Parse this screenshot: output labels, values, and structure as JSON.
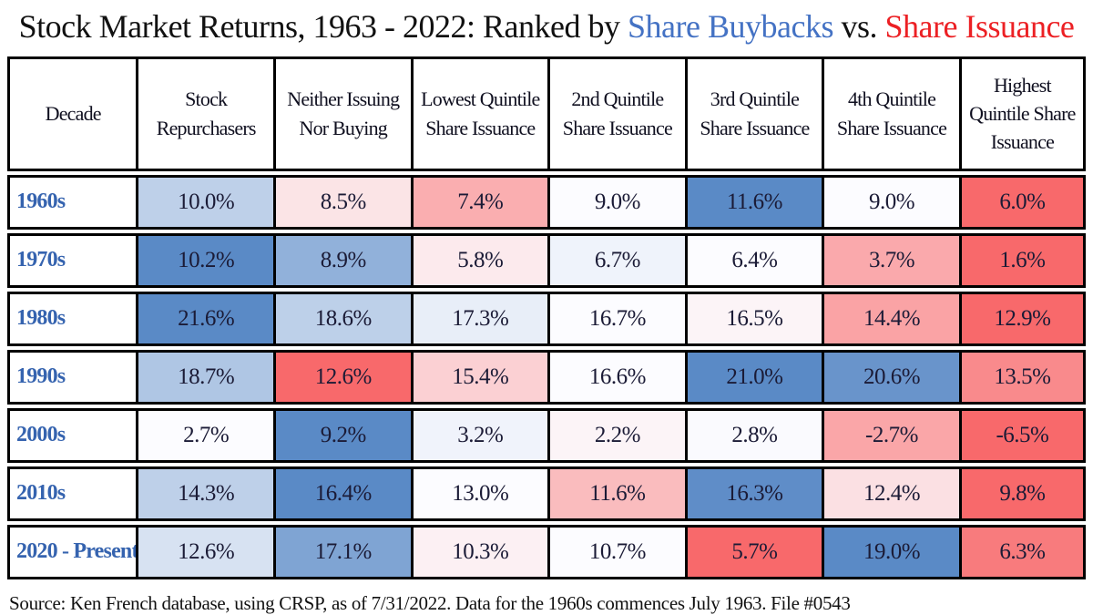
{
  "title": {
    "prefix": "Stock Market Returns, 1963 - 2022: Ranked by ",
    "buybacks": "Share Buybacks",
    "vs": " vs. ",
    "issuance": "Share Issuance",
    "buybacks_color": "#4472C4",
    "issuance_color": "#EC2024"
  },
  "chart_data": {
    "type": "heatmap",
    "title": "Stock Market Returns, 1963 - 2022: Ranked by Share Buybacks vs. Share Issuance",
    "corner_label": "Decade",
    "columns": [
      "Stock\nRepurchasers",
      "Neither Issuing\nNor Buying",
      "Lowest Quintile\nShare Issuance",
      "2nd Quintile\nShare Issuance",
      "3rd Quintile\nShare Issuance",
      "4th Quintile\nShare Issuance",
      "Highest\nQuintile Share\nIssuance"
    ],
    "rows": [
      "1960s",
      "1970s",
      "1980s",
      "1990s",
      "2000s",
      "2010s",
      "2020 - Present"
    ],
    "values_pct": [
      [
        10.0,
        8.5,
        7.4,
        9.0,
        11.6,
        9.0,
        6.0
      ],
      [
        10.2,
        8.9,
        5.8,
        6.7,
        6.4,
        3.7,
        1.6
      ],
      [
        21.6,
        18.6,
        17.3,
        16.7,
        16.5,
        14.4,
        12.9
      ],
      [
        18.7,
        12.6,
        15.4,
        16.6,
        21.0,
        20.6,
        13.5
      ],
      [
        2.7,
        9.2,
        3.2,
        2.2,
        2.8,
        -2.7,
        -6.5
      ],
      [
        14.3,
        16.4,
        13.0,
        11.6,
        16.3,
        12.4,
        9.8
      ],
      [
        12.6,
        17.1,
        10.3,
        10.7,
        5.7,
        19.0,
        6.3
      ]
    ],
    "value_format": "percent_1dp",
    "normalization": "per-row: min, median, max",
    "color_scale": {
      "min_color": "#F8696B",
      "mid_color": "#FCFCFF",
      "max_color": "#5A8AC6"
    },
    "row_label_color": "#3563AF",
    "grid": true,
    "legend": "none"
  },
  "source": "Source: Ken French database, using CRSP, as of 7/31/2022. Data for the 1960s commences July 1963. File #0543"
}
